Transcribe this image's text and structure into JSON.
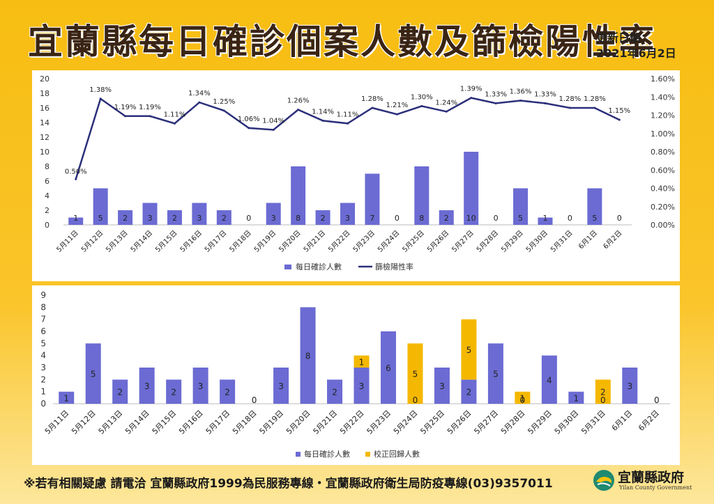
{
  "header": {
    "title": "宜蘭縣每日確診個案人數及篩檢陽性率",
    "update_label": "更新日期：",
    "update_date": "2021年6月2日"
  },
  "footer": {
    "text": "※若有相關疑慮 請電洽  宜蘭縣政府1999為民服務專線・宜蘭縣政府衛生局防疫專線(03)9357011"
  },
  "logo": {
    "name": "宜蘭縣政府",
    "sub": "Yilan County Government",
    "icon": "yilan-emblem-icon"
  },
  "colors": {
    "bar": "#6b6bd3",
    "line": "#2b2f7a",
    "corrected": "#f5b800"
  },
  "chart_data": [
    {
      "type": "bar",
      "categories": [
        "5月11日",
        "5月12日",
        "5月13日",
        "5月14日",
        "5月15日",
        "5月16日",
        "5月17日",
        "5月18日",
        "5月19日",
        "5月20日",
        "5月21日",
        "5月22日",
        "5月23日",
        "5月24日",
        "5月25日",
        "5月26日",
        "5月27日",
        "5月28日",
        "5月29日",
        "5月30日",
        "5月31日",
        "6月1日",
        "6月2日"
      ],
      "series": [
        {
          "name": "每日確診人數",
          "type": "bar",
          "axis": "left",
          "values": [
            1,
            5,
            2,
            3,
            2,
            3,
            2,
            0,
            3,
            8,
            2,
            3,
            7,
            0,
            8,
            2,
            10,
            0,
            5,
            1,
            0,
            5,
            0
          ]
        },
        {
          "name": "篩檢陽性率",
          "type": "line",
          "axis": "right",
          "values": [
            0.5,
            1.38,
            1.19,
            1.19,
            1.11,
            1.34,
            1.25,
            1.06,
            1.04,
            1.26,
            1.14,
            1.11,
            1.28,
            1.21,
            1.3,
            1.24,
            1.39,
            1.33,
            1.36,
            1.33,
            1.28,
            1.28,
            1.15
          ],
          "labels": [
            "0.50%",
            "1.38%",
            "1.19%",
            "1.19%",
            "1.11%",
            "1.34%",
            "1.25%",
            "1.06%",
            "1.04%",
            "1.26%",
            "1.14%",
            "1.11%",
            "1.28%",
            "1.21%",
            "1.30%",
            "1.24%",
            "1.39%",
            "1.33%",
            "1.36%",
            "1.33%",
            "1.28%",
            "1.28%",
            "1.15%"
          ]
        }
      ],
      "ylim": [
        0,
        20
      ],
      "yticks": [
        "0",
        "2",
        "4",
        "6",
        "8",
        "10",
        "12",
        "14",
        "16",
        "18",
        "20"
      ],
      "y2lim": [
        0,
        1.6
      ],
      "y2ticks": [
        "0.00%",
        "0.20%",
        "0.40%",
        "0.60%",
        "0.80%",
        "1.00%",
        "1.20%",
        "1.40%",
        "1.60%"
      ],
      "legend": "bottom",
      "grid": false
    },
    {
      "type": "bar",
      "stacked": true,
      "categories": [
        "5月11日",
        "5月12日",
        "5月13日",
        "5月14日",
        "5月15日",
        "5月16日",
        "5月17日",
        "5月18日",
        "5月19日",
        "5月20日",
        "5月21日",
        "5月22日",
        "5月23日",
        "5月24日",
        "5月25日",
        "5月26日",
        "5月27日",
        "5月28日",
        "5月29日",
        "5月30日",
        "5月31日",
        "6月1日",
        "6月2日"
      ],
      "series": [
        {
          "name": "每日確診人數",
          "values": [
            1,
            5,
            2,
            3,
            2,
            3,
            2,
            0,
            3,
            8,
            2,
            3,
            6,
            0,
            3,
            2,
            5,
            0,
            4,
            1,
            0,
            3,
            0
          ],
          "labels": [
            "1",
            "5",
            "2",
            "3",
            "2",
            "3",
            "2",
            "0",
            "3",
            "8",
            "2",
            "3",
            "6",
            "0",
            "3",
            "2",
            "5",
            "0",
            "4",
            "1",
            "0",
            "3",
            "0"
          ]
        },
        {
          "name": "校正回歸人數",
          "values": [
            0,
            0,
            0,
            0,
            0,
            0,
            0,
            0,
            0,
            0,
            0,
            1,
            0,
            5,
            0,
            5,
            0,
            1,
            0,
            0,
            2,
            0,
            0
          ],
          "labels": [
            "",
            "",
            "",
            "",
            "",
            "",
            "",
            "",
            "",
            "",
            "",
            "1",
            "",
            "5",
            "",
            "5",
            "",
            "1",
            "",
            "",
            "2",
            "",
            ""
          ]
        }
      ],
      "ylim": [
        0,
        9
      ],
      "yticks": [
        "0",
        "1",
        "2",
        "3",
        "4",
        "5",
        "6",
        "7",
        "8",
        "9"
      ],
      "legend": "bottom",
      "grid": false
    }
  ]
}
